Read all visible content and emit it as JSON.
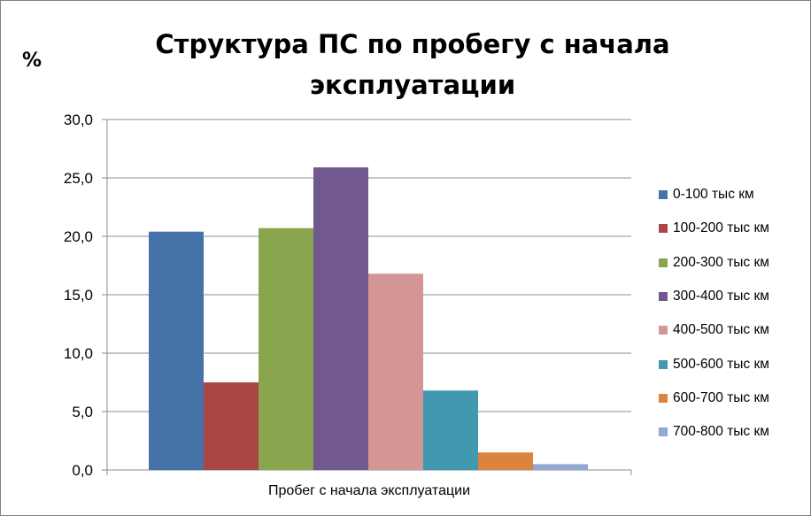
{
  "chart_data": {
    "type": "bar",
    "title": "Структура ПС по пробегу с начала\nэксплуатации",
    "ylabel": "%",
    "xlabel": "Пробег с начала эксплуатации",
    "ylim": [
      0,
      30
    ],
    "yticks": [
      "0,0",
      "5,0",
      "10,0",
      "15,0",
      "20,0",
      "25,0",
      "30,0"
    ],
    "grid": true,
    "legend_position": "right",
    "series": [
      {
        "name": "0-100 тыс км",
        "value": 20.4,
        "color": "#4572A7"
      },
      {
        "name": "100-200 тыс км",
        "value": 7.5,
        "color": "#AA4643"
      },
      {
        "name": "200-300 тыс км",
        "value": 20.7,
        "color": "#89A54E"
      },
      {
        "name": "300-400 тыс км",
        "value": 25.9,
        "color": "#71588F"
      },
      {
        "name": "400-500 тыс км",
        "value": 16.8,
        "color": "#D49595"
      },
      {
        "name": "500-600 тыс км",
        "value": 6.8,
        "color": "#4198AF"
      },
      {
        "name": "600-700 тыс км",
        "value": 1.5,
        "color": "#DB843D"
      },
      {
        "name": "700-800 тыс км",
        "value": 0.5,
        "color": "#93A9CF"
      }
    ]
  }
}
